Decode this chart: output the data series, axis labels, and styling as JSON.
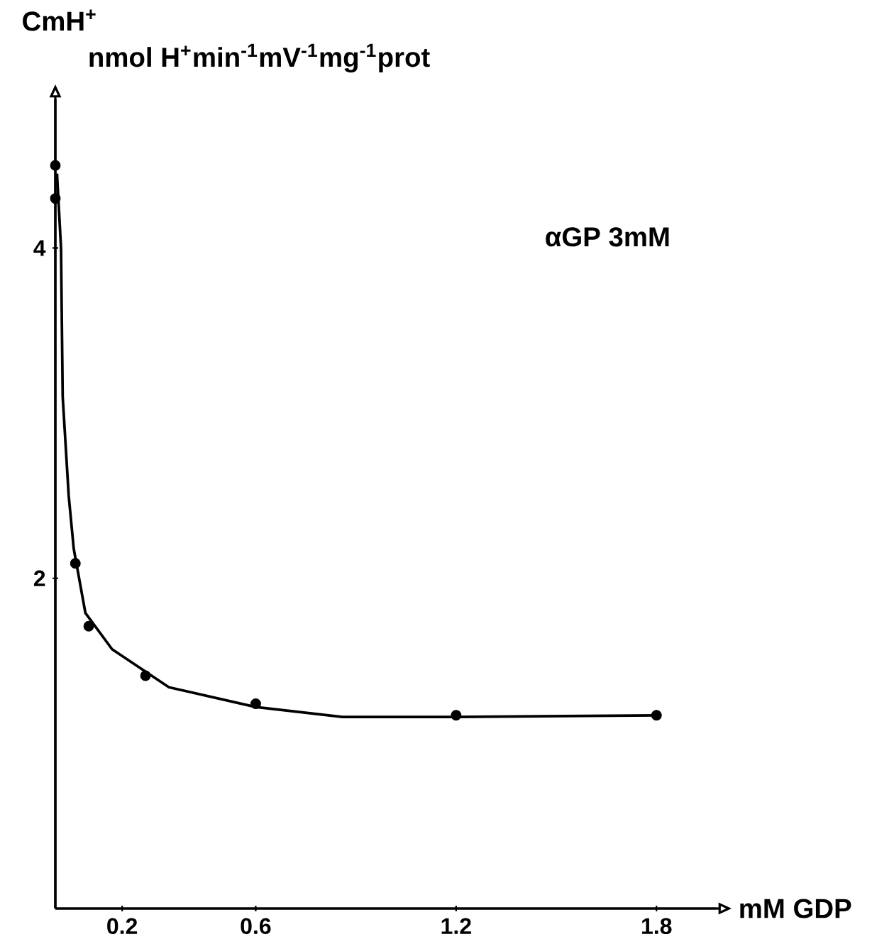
{
  "chart_data": {
    "type": "scatter",
    "ylabel": "CmH$^{+}$",
    "xlabel": "mM GDP",
    "annotations": [
      "nmol H$^{+}$min$^{-1}$mV$^{-1}$mg$^{-1}$prot",
      "αGP 3mM"
    ],
    "xlim": [
      0,
      1.98
    ],
    "ylim": [
      0,
      4.9
    ],
    "xticks": [
      0.2,
      0.6,
      1.2,
      1.8
    ],
    "yticks": [
      2,
      4
    ],
    "series": [
      {
        "color": "#000000",
        "marker": "circle",
        "x": [
          0.0,
          0.0,
          0.06,
          0.1,
          0.27,
          0.6,
          1.2,
          1.8
        ],
        "values": [
          4.5,
          4.3,
          2.09,
          1.71,
          1.41,
          1.24,
          1.17,
          1.17
        ]
      },
      {
        "type": "line",
        "color": "#000000",
        "line_style": "solid",
        "x": [
          0.005,
          0.017,
          0.022,
          0.04,
          0.055,
          0.09,
          0.17,
          0.34,
          0.6,
          0.86,
          1.2,
          1.8
        ],
        "values": [
          4.45,
          4.0,
          3.1,
          2.5,
          2.18,
          1.79,
          1.57,
          1.34,
          1.22,
          1.16,
          1.16,
          1.17
        ]
      }
    ]
  }
}
